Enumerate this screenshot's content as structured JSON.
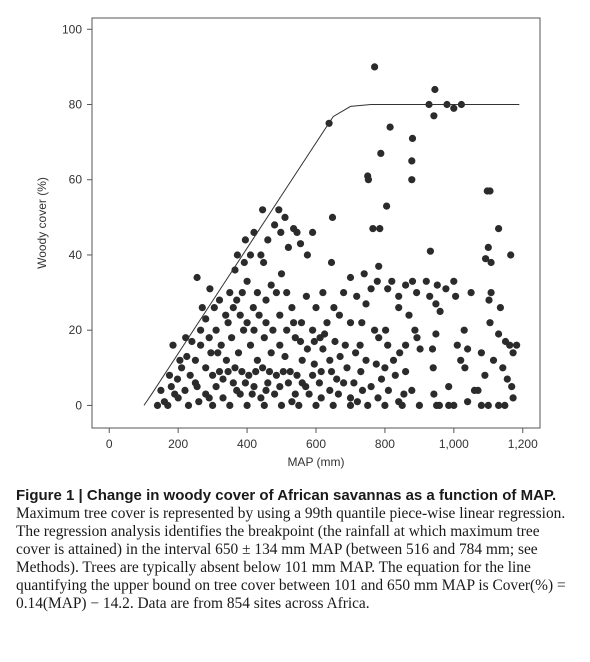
{
  "figure": {
    "caption_label": "Figure 1 | ",
    "caption_title": "Change in woody cover of African savannas as a function of MAP.",
    "caption_body": " Maximum tree cover is represented by using a 99th quantile piece-wise linear regression. The regression analysis identifies the breakpoint (the rainfall at which maximum tree cover is attained) in the interval 650 ± 134 mm MAP (between 516 and 784 mm; see Methods). Trees are typically absent below 101 mm MAP. The equation for the line quantifying the upper bound on tree cover between 101 and 650 mm MAP is Cover(%) = 0.14(MAP) − 14.2. Data are from 854 sites across Africa."
  },
  "chart_data": {
    "type": "scatter",
    "title": "",
    "xlabel": "MAP (mm)",
    "ylabel": "Woody cover (%)",
    "xlim": [
      -50,
      1250
    ],
    "ylim": [
      -6,
      103
    ],
    "xticks": [
      0,
      200,
      400,
      600,
      800,
      1000,
      1200
    ],
    "xtick_labels": [
      "0",
      "200",
      "400",
      "600",
      "800",
      "1,000",
      "1,200"
    ],
    "yticks": [
      0,
      20,
      40,
      60,
      80,
      100
    ],
    "ytick_labels": [
      "0",
      "20",
      "40",
      "60",
      "80",
      "100"
    ],
    "grid": false,
    "colors": {
      "points": "#2b2b2b",
      "line": "#333333",
      "axes": "#555555"
    },
    "fit_line": {
      "name": "99th quantile piece-wise linear regression",
      "x": [
        101,
        120,
        300,
        500,
        650,
        700,
        760,
        790,
        1190
      ],
      "y": [
        0,
        2.6,
        27.8,
        55.8,
        76.8,
        79.5,
        80,
        80,
        80
      ]
    },
    "points": [
      [
        255,
        34
      ],
      [
        770,
        90
      ],
      [
        945,
        84
      ],
      [
        928,
        80
      ],
      [
        1022,
        80
      ],
      [
        980,
        80
      ],
      [
        942,
        77
      ],
      [
        638,
        75
      ],
      [
        750,
        61
      ],
      [
        815,
        74
      ],
      [
        880,
        71
      ],
      [
        1000,
        79
      ],
      [
        878,
        65
      ],
      [
        788,
        67
      ],
      [
        878,
        60
      ],
      [
        752,
        60
      ],
      [
        648,
        50
      ],
      [
        805,
        53
      ],
      [
        590,
        46
      ],
      [
        765,
        47
      ],
      [
        785,
        47
      ],
      [
        1097,
        57
      ],
      [
        1105,
        57
      ],
      [
        1130,
        47
      ],
      [
        1100,
        42
      ],
      [
        1092,
        39
      ],
      [
        1108,
        38
      ],
      [
        1165,
        40
      ],
      [
        445,
        52
      ],
      [
        492,
        52
      ],
      [
        510,
        50
      ],
      [
        535,
        47
      ],
      [
        545,
        46
      ],
      [
        480,
        48
      ],
      [
        498,
        46
      ],
      [
        460,
        44
      ],
      [
        420,
        46
      ],
      [
        395,
        44
      ],
      [
        440,
        40
      ],
      [
        410,
        40
      ],
      [
        448,
        38
      ],
      [
        372,
        40
      ],
      [
        392,
        38
      ],
      [
        365,
        36
      ],
      [
        520,
        42
      ],
      [
        555,
        43
      ],
      [
        645,
        38
      ],
      [
        700,
        34
      ],
      [
        740,
        35
      ],
      [
        782,
        37
      ],
      [
        778,
        33
      ],
      [
        820,
        33
      ],
      [
        760,
        31
      ],
      [
        808,
        31
      ],
      [
        840,
        29
      ],
      [
        860,
        32
      ],
      [
        880,
        33
      ],
      [
        892,
        30
      ],
      [
        920,
        33
      ],
      [
        932,
        41
      ],
      [
        930,
        29
      ],
      [
        948,
        27
      ],
      [
        952,
        32
      ],
      [
        977,
        31
      ],
      [
        1000,
        33
      ],
      [
        1005,
        29
      ],
      [
        960,
        25
      ],
      [
        1050,
        30
      ],
      [
        1102,
        28
      ],
      [
        1108,
        30
      ],
      [
        1135,
        26
      ],
      [
        1105,
        22
      ],
      [
        1130,
        19
      ],
      [
        1040,
        15
      ],
      [
        1150,
        17
      ],
      [
        1162,
        16
      ],
      [
        1172,
        14
      ],
      [
        1182,
        16
      ],
      [
        1142,
        10
      ],
      [
        1155,
        7
      ],
      [
        1168,
        5
      ],
      [
        1172,
        2
      ],
      [
        1148,
        0
      ],
      [
        1130,
        0
      ],
      [
        1080,
        0
      ],
      [
        1100,
        0
      ],
      [
        1060,
        4
      ],
      [
        1040,
        1
      ],
      [
        1000,
        0
      ],
      [
        985,
        5
      ],
      [
        958,
        0
      ],
      [
        1032,
        10
      ],
      [
        1020,
        12
      ],
      [
        1010,
        16
      ],
      [
        1030,
        20
      ],
      [
        938,
        15
      ],
      [
        948,
        19
      ],
      [
        940,
        10
      ],
      [
        942,
        3
      ],
      [
        902,
        15
      ],
      [
        893,
        18
      ],
      [
        887,
        20
      ],
      [
        870,
        24
      ],
      [
        860,
        16
      ],
      [
        843,
        14
      ],
      [
        860,
        9
      ],
      [
        878,
        4
      ],
      [
        840,
        26
      ],
      [
        802,
        20
      ],
      [
        808,
        16
      ],
      [
        782,
        18
      ],
      [
        770,
        20
      ],
      [
        745,
        27
      ],
      [
        733,
        22
      ],
      [
        718,
        29
      ],
      [
        728,
        16
      ],
      [
        700,
        22
      ],
      [
        680,
        30
      ],
      [
        668,
        24
      ],
      [
        652,
        26
      ],
      [
        620,
        30
      ],
      [
        632,
        22
      ],
      [
        600,
        26
      ],
      [
        612,
        18
      ],
      [
        590,
        20
      ],
      [
        572,
        29
      ],
      [
        558,
        22
      ],
      [
        540,
        18
      ],
      [
        530,
        26
      ],
      [
        575,
        40
      ],
      [
        515,
        30
      ],
      [
        500,
        35
      ],
      [
        485,
        30
      ],
      [
        470,
        32
      ],
      [
        455,
        28
      ],
      [
        430,
        30
      ],
      [
        418,
        26
      ],
      [
        400,
        33
      ],
      [
        386,
        30
      ],
      [
        370,
        28
      ],
      [
        350,
        30
      ],
      [
        338,
        24
      ],
      [
        320,
        28
      ],
      [
        305,
        26
      ],
      [
        292,
        31
      ],
      [
        280,
        23
      ],
      [
        265,
        20
      ],
      [
        240,
        17
      ],
      [
        225,
        13
      ],
      [
        210,
        10
      ],
      [
        198,
        7
      ],
      [
        185,
        16
      ],
      [
        180,
        5
      ],
      [
        150,
        4
      ],
      [
        160,
        1
      ],
      [
        140,
        0
      ],
      [
        170,
        0
      ],
      [
        200,
        2
      ],
      [
        230,
        0
      ],
      [
        260,
        1
      ],
      [
        300,
        0
      ],
      [
        350,
        0
      ],
      [
        400,
        0
      ],
      [
        450,
        0
      ],
      [
        500,
        0
      ],
      [
        550,
        0
      ],
      [
        600,
        0
      ],
      [
        650,
        0
      ],
      [
        700,
        0
      ],
      [
        750,
        0
      ],
      [
        800,
        0
      ],
      [
        850,
        0
      ],
      [
        900,
        0
      ],
      [
        950,
        0
      ],
      [
        985,
        0
      ],
      [
        1070,
        4
      ],
      [
        1090,
        8
      ],
      [
        1115,
        12
      ],
      [
        1080,
        14
      ],
      [
        700,
        2
      ],
      [
        735,
        4
      ],
      [
        640,
        4
      ],
      [
        660,
        7
      ],
      [
        610,
        6
      ],
      [
        580,
        3
      ],
      [
        540,
        3
      ],
      [
        520,
        6
      ],
      [
        480,
        3
      ],
      [
        460,
        6
      ],
      [
        440,
        2
      ],
      [
        420,
        5
      ],
      [
        380,
        3
      ],
      [
        360,
        6
      ],
      [
        330,
        2
      ],
      [
        310,
        5
      ],
      [
        280,
        3
      ],
      [
        250,
        6
      ],
      [
        220,
        4
      ],
      [
        190,
        3
      ],
      [
        175,
        8
      ],
      [
        760,
        5
      ],
      [
        790,
        7
      ],
      [
        810,
        4
      ],
      [
        830,
        8
      ],
      [
        855,
        3
      ],
      [
        730,
        9
      ],
      [
        690,
        10
      ],
      [
        670,
        13
      ],
      [
        640,
        12
      ],
      [
        620,
        15
      ],
      [
        595,
        11
      ],
      [
        560,
        12
      ],
      [
        545,
        8
      ],
      [
        510,
        13
      ],
      [
        495,
        16
      ],
      [
        470,
        14
      ],
      [
        450,
        18
      ],
      [
        430,
        12
      ],
      [
        410,
        16
      ],
      [
        390,
        20
      ],
      [
        375,
        14
      ],
      [
        355,
        18
      ],
      [
        340,
        12
      ],
      [
        325,
        16
      ],
      [
        310,
        20
      ],
      [
        295,
        14
      ],
      [
        280,
        10
      ],
      [
        265,
        16
      ],
      [
        250,
        12
      ],
      [
        235,
        8
      ],
      [
        222,
        18
      ],
      [
        205,
        12
      ],
      [
        300,
        8
      ],
      [
        320,
        9
      ],
      [
        345,
        9
      ],
      [
        365,
        10
      ],
      [
        385,
        9
      ],
      [
        405,
        8
      ],
      [
        425,
        9
      ],
      [
        445,
        10
      ],
      [
        465,
        9
      ],
      [
        485,
        8
      ],
      [
        505,
        9
      ],
      [
        525,
        9
      ],
      [
        560,
        6
      ],
      [
        590,
        8
      ],
      [
        615,
        9
      ],
      [
        645,
        9
      ],
      [
        680,
        6
      ],
      [
        710,
        6
      ],
      [
        270,
        26
      ],
      [
        290,
        18
      ],
      [
        315,
        14
      ],
      [
        345,
        22
      ],
      [
        360,
        26
      ],
      [
        380,
        24
      ],
      [
        400,
        22
      ],
      [
        420,
        20
      ],
      [
        435,
        24
      ],
      [
        455,
        22
      ],
      [
        475,
        20
      ],
      [
        495,
        24
      ],
      [
        515,
        20
      ],
      [
        535,
        22
      ],
      [
        555,
        17
      ],
      [
        575,
        15
      ],
      [
        595,
        17
      ],
      [
        625,
        19
      ],
      [
        655,
        17
      ],
      [
        685,
        16
      ],
      [
        715,
        14
      ],
      [
        745,
        12
      ],
      [
        775,
        11
      ],
      [
        800,
        10
      ],
      [
        825,
        12
      ],
      [
        255,
        5
      ],
      [
        290,
        2
      ],
      [
        330,
        7
      ],
      [
        370,
        4
      ],
      [
        395,
        6
      ],
      [
        415,
        3
      ],
      [
        455,
        4
      ],
      [
        495,
        5
      ],
      [
        530,
        1
      ],
      [
        570,
        5
      ],
      [
        615,
        2
      ],
      [
        665,
        3
      ],
      [
        720,
        1
      ],
      [
        780,
        2
      ],
      [
        840,
        1
      ]
    ]
  }
}
